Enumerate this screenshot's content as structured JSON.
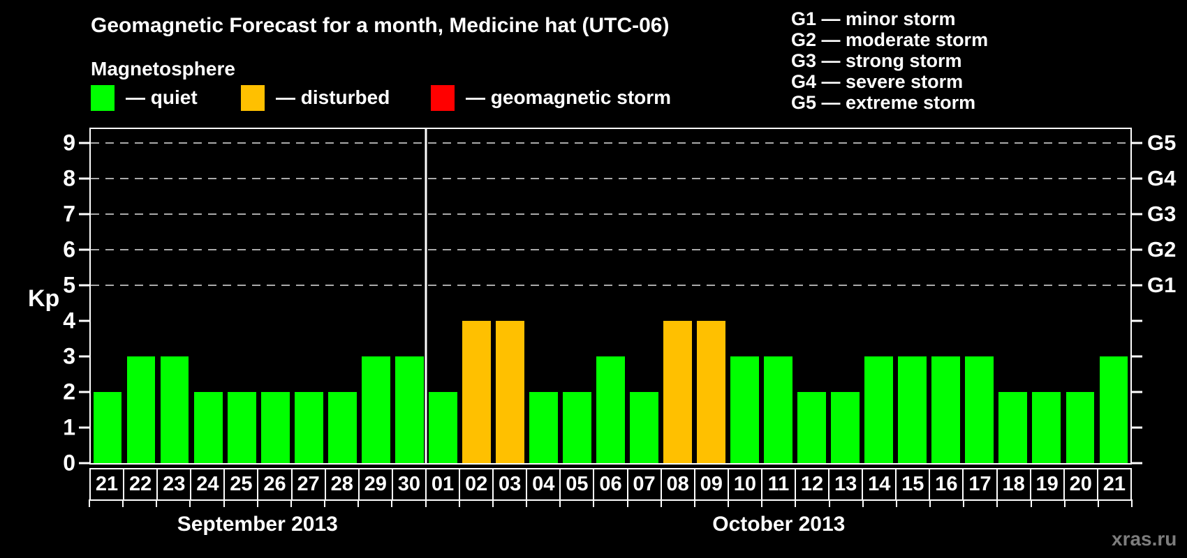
{
  "title": "Geomagnetic Forecast for a month, Medicine hat (UTC-06)",
  "subtitle": "Magnetosphere",
  "legend": {
    "items": [
      {
        "name": "quiet",
        "label": "— quiet",
        "color": "#00ff00"
      },
      {
        "name": "disturbed",
        "label": "— disturbed",
        "color": "#ffc000"
      },
      {
        "name": "geomagnetic-storm",
        "label": "— geomagnetic storm",
        "color": "#ff0000"
      }
    ]
  },
  "storm_scale_legend": [
    "G1 — minor storm",
    "G2 — moderate storm",
    "G3 — strong storm",
    "G4 — severe storm",
    "G5 — extreme storm"
  ],
  "watermark": "xras.ru",
  "chart_data": {
    "type": "bar",
    "title": "Geomagnetic Forecast for a month, Medicine hat (UTC-06)",
    "ylabel": "Kp",
    "xlabel": "",
    "ylim": [
      0,
      9.4
    ],
    "y_ticks": [
      0,
      1,
      2,
      3,
      4,
      5,
      6,
      7,
      8,
      9
    ],
    "gridlines_at": [
      5,
      6,
      7,
      8,
      9
    ],
    "grid_style": "dashed horizontal lines at storm levels G1–G5",
    "right_axis_labels": [
      {
        "label": "G1",
        "kp": 5
      },
      {
        "label": "G2",
        "kp": 6
      },
      {
        "label": "G3",
        "kp": 7
      },
      {
        "label": "G4",
        "kp": 8
      },
      {
        "label": "G5",
        "kp": 9
      }
    ],
    "state_colors": {
      "quiet": "#00ff00",
      "disturbed": "#ffc000",
      "storm": "#ff0000"
    },
    "months": [
      {
        "label": "September 2013",
        "days_count": 10
      },
      {
        "label": "October 2013",
        "days_count": 21
      }
    ],
    "bars": [
      {
        "month": "September 2013",
        "day": "21",
        "kp": 2,
        "state": "quiet"
      },
      {
        "month": "September 2013",
        "day": "22",
        "kp": 3,
        "state": "quiet"
      },
      {
        "month": "September 2013",
        "day": "23",
        "kp": 3,
        "state": "quiet"
      },
      {
        "month": "September 2013",
        "day": "24",
        "kp": 2,
        "state": "quiet"
      },
      {
        "month": "September 2013",
        "day": "25",
        "kp": 2,
        "state": "quiet"
      },
      {
        "month": "September 2013",
        "day": "26",
        "kp": 2,
        "state": "quiet"
      },
      {
        "month": "September 2013",
        "day": "27",
        "kp": 2,
        "state": "quiet"
      },
      {
        "month": "September 2013",
        "day": "28",
        "kp": 2,
        "state": "quiet"
      },
      {
        "month": "September 2013",
        "day": "29",
        "kp": 3,
        "state": "quiet"
      },
      {
        "month": "September 2013",
        "day": "30",
        "kp": 3,
        "state": "quiet"
      },
      {
        "month": "October 2013",
        "day": "01",
        "kp": 2,
        "state": "quiet"
      },
      {
        "month": "October 2013",
        "day": "02",
        "kp": 4,
        "state": "disturbed"
      },
      {
        "month": "October 2013",
        "day": "03",
        "kp": 4,
        "state": "disturbed"
      },
      {
        "month": "October 2013",
        "day": "04",
        "kp": 2,
        "state": "quiet"
      },
      {
        "month": "October 2013",
        "day": "05",
        "kp": 2,
        "state": "quiet"
      },
      {
        "month": "October 2013",
        "day": "06",
        "kp": 3,
        "state": "quiet"
      },
      {
        "month": "October 2013",
        "day": "07",
        "kp": 2,
        "state": "quiet"
      },
      {
        "month": "October 2013",
        "day": "08",
        "kp": 4,
        "state": "disturbed"
      },
      {
        "month": "October 2013",
        "day": "09",
        "kp": 4,
        "state": "disturbed"
      },
      {
        "month": "October 2013",
        "day": "10",
        "kp": 3,
        "state": "quiet"
      },
      {
        "month": "October 2013",
        "day": "11",
        "kp": 3,
        "state": "quiet"
      },
      {
        "month": "October 2013",
        "day": "12",
        "kp": 2,
        "state": "quiet"
      },
      {
        "month": "October 2013",
        "day": "13",
        "kp": 2,
        "state": "quiet"
      },
      {
        "month": "October 2013",
        "day": "14",
        "kp": 3,
        "state": "quiet"
      },
      {
        "month": "October 2013",
        "day": "15",
        "kp": 3,
        "state": "quiet"
      },
      {
        "month": "October 2013",
        "day": "16",
        "kp": 3,
        "state": "quiet"
      },
      {
        "month": "October 2013",
        "day": "17",
        "kp": 3,
        "state": "quiet"
      },
      {
        "month": "October 2013",
        "day": "18",
        "kp": 2,
        "state": "quiet"
      },
      {
        "month": "October 2013",
        "day": "19",
        "kp": 2,
        "state": "quiet"
      },
      {
        "month": "October 2013",
        "day": "20",
        "kp": 2,
        "state": "quiet"
      },
      {
        "month": "October 2013",
        "day": "21",
        "kp": 3,
        "state": "quiet"
      }
    ]
  }
}
